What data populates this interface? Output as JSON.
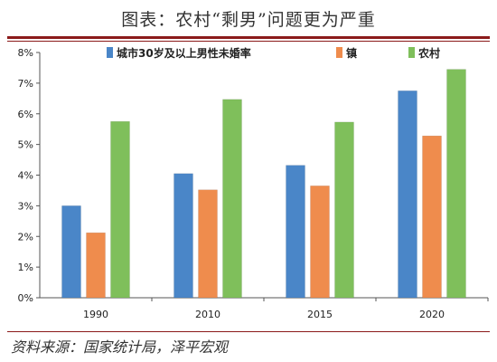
{
  "header": {
    "title": "图表：农村“剩男”问题更为严重"
  },
  "footer": {
    "source": "资料来源：国家统计局，泽平宏观"
  },
  "colors": {
    "rule": "#8b1a1a"
  },
  "chart_data": {
    "type": "bar",
    "categories": [
      "1990",
      "2010",
      "2015",
      "2020"
    ],
    "series": [
      {
        "name": "城市30岁及以上男性未婚率",
        "values": [
          3.0,
          4.05,
          4.32,
          6.75
        ],
        "color": "#4a86c8"
      },
      {
        "name": "镇",
        "values": [
          2.12,
          3.52,
          3.65,
          5.28
        ],
        "color": "#ef8c4d"
      },
      {
        "name": "农村",
        "values": [
          5.75,
          6.47,
          5.73,
          7.45
        ],
        "color": "#7fbf5b"
      }
    ],
    "ylim": [
      0,
      8
    ],
    "yticks": [
      "0%",
      "1%",
      "2%",
      "3%",
      "4%",
      "5%",
      "6%",
      "7%",
      "8%"
    ],
    "grid": false,
    "legend_position": "top"
  }
}
